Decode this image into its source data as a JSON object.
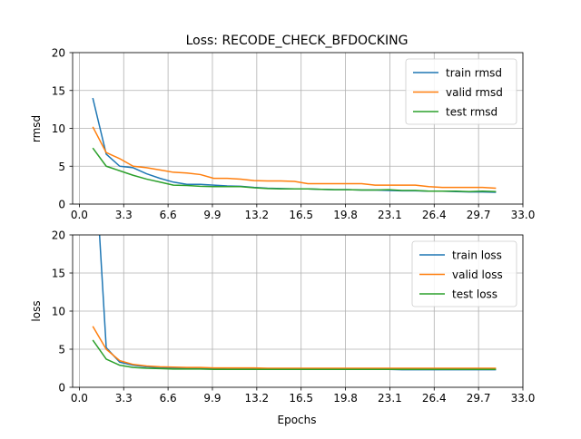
{
  "chart_data": [
    {
      "type": "line",
      "title": "Loss: RECODE_CHECK_BFDOCKING",
      "xlabel": "",
      "ylabel": "rmsd",
      "xlim": [
        -0.5,
        33.0
      ],
      "ylim": [
        0,
        20
      ],
      "xticks": [
        "0.0",
        "3.3",
        "6.6",
        "9.9",
        "13.2",
        "16.5",
        "19.8",
        "23.1",
        "26.4",
        "29.7",
        "33.0"
      ],
      "yticks": [
        "0",
        "5",
        "10",
        "15",
        "20"
      ],
      "grid": true,
      "legend_position": "top-right",
      "x": [
        1,
        2,
        3,
        4,
        5,
        6,
        7,
        8,
        9,
        10,
        11,
        12,
        13,
        14,
        15,
        16,
        17,
        18,
        19,
        20,
        21,
        22,
        23,
        24,
        25,
        26,
        27,
        28,
        29,
        30,
        31
      ],
      "series": [
        {
          "name": "train rmsd",
          "color": "#1f77b4",
          "values": [
            14.0,
            6.6,
            5.0,
            4.8,
            4.0,
            3.4,
            2.9,
            2.6,
            2.6,
            2.5,
            2.4,
            2.35,
            2.2,
            2.1,
            2.05,
            2.0,
            2.0,
            1.95,
            1.9,
            1.9,
            1.85,
            1.85,
            1.8,
            1.75,
            1.75,
            1.7,
            1.7,
            1.65,
            1.6,
            1.6,
            1.55
          ]
        },
        {
          "name": "valid rmsd",
          "color": "#ff7f0e",
          "values": [
            10.2,
            6.8,
            6.0,
            5.0,
            4.8,
            4.5,
            4.2,
            4.1,
            3.9,
            3.4,
            3.4,
            3.3,
            3.1,
            3.05,
            3.05,
            3.0,
            2.7,
            2.7,
            2.7,
            2.7,
            2.7,
            2.5,
            2.5,
            2.5,
            2.5,
            2.3,
            2.2,
            2.2,
            2.2,
            2.2,
            2.1
          ]
        },
        {
          "name": "test rmsd",
          "color": "#2ca02c",
          "values": [
            7.4,
            5.0,
            4.4,
            3.8,
            3.3,
            2.9,
            2.5,
            2.45,
            2.35,
            2.3,
            2.3,
            2.3,
            2.15,
            2.05,
            2.0,
            2.0,
            2.0,
            1.95,
            1.9,
            1.9,
            1.85,
            1.85,
            1.9,
            1.8,
            1.8,
            1.7,
            1.7,
            1.7,
            1.65,
            1.7,
            1.65
          ]
        }
      ]
    },
    {
      "type": "line",
      "title": "",
      "xlabel": "Epochs",
      "ylabel": "loss",
      "xlim": [
        -0.5,
        33.0
      ],
      "ylim": [
        0,
        20
      ],
      "xticks": [
        "0.0",
        "3.3",
        "6.6",
        "9.9",
        "13.2",
        "16.5",
        "19.8",
        "23.1",
        "26.4",
        "29.7",
        "33.0"
      ],
      "yticks": [
        "0",
        "5",
        "10",
        "15",
        "20"
      ],
      "grid": true,
      "legend_position": "top-right",
      "x": [
        1,
        2,
        3,
        4,
        5,
        6,
        7,
        8,
        9,
        10,
        11,
        12,
        13,
        14,
        15,
        16,
        17,
        18,
        19,
        20,
        21,
        22,
        23,
        24,
        25,
        26,
        27,
        28,
        29,
        30,
        31
      ],
      "series": [
        {
          "name": "train loss",
          "color": "#1f77b4",
          "values": [
            35.0,
            5.2,
            3.3,
            2.9,
            2.7,
            2.6,
            2.55,
            2.5,
            2.45,
            2.45,
            2.4,
            2.4,
            2.4,
            2.35,
            2.35,
            2.35,
            2.35,
            2.35,
            2.35,
            2.35,
            2.35,
            2.35,
            2.35,
            2.3,
            2.3,
            2.3,
            2.3,
            2.3,
            2.3,
            2.3,
            2.3
          ]
        },
        {
          "name": "valid loss",
          "color": "#ff7f0e",
          "values": [
            8.0,
            5.0,
            3.5,
            3.0,
            2.8,
            2.7,
            2.65,
            2.6,
            2.6,
            2.55,
            2.55,
            2.55,
            2.55,
            2.5,
            2.5,
            2.5,
            2.5,
            2.5,
            2.5,
            2.5,
            2.5,
            2.5,
            2.5,
            2.5,
            2.5,
            2.5,
            2.5,
            2.5,
            2.5,
            2.5,
            2.5
          ]
        },
        {
          "name": "test loss",
          "color": "#2ca02c",
          "values": [
            6.2,
            3.7,
            2.9,
            2.6,
            2.5,
            2.45,
            2.4,
            2.4,
            2.4,
            2.35,
            2.35,
            2.35,
            2.35,
            2.35,
            2.35,
            2.35,
            2.35,
            2.35,
            2.35,
            2.35,
            2.35,
            2.35,
            2.35,
            2.35,
            2.35,
            2.35,
            2.35,
            2.35,
            2.35,
            2.35,
            2.35
          ]
        }
      ]
    }
  ]
}
